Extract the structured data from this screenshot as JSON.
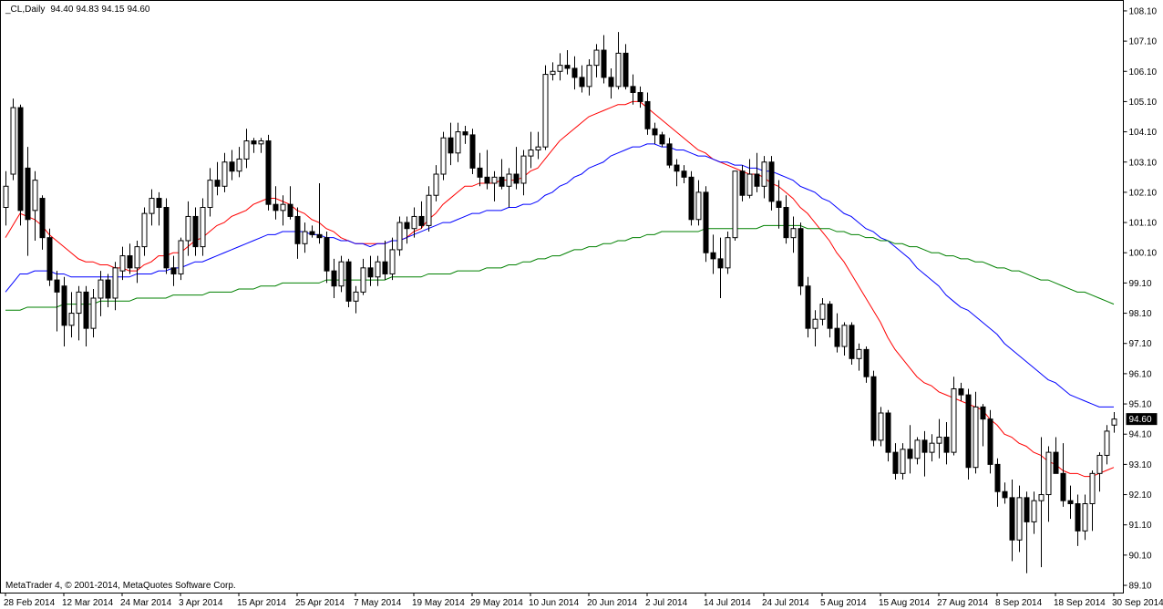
{
  "chart_data": {
    "type": "candlestick",
    "title": "_CL,Daily",
    "header_values": [
      "94.40",
      "94.83",
      "94.15",
      "94.60"
    ],
    "last_price_label": "94.60",
    "footer": "MetaTrader 4, © 2001-2014, MetaQuotes Software Corp.",
    "categories": [
      "28 Feb 2014",
      null,
      null,
      null,
      null,
      null,
      null,
      null,
      "12 Mar 2014",
      null,
      null,
      null,
      null,
      null,
      null,
      null,
      "24 Mar 2014",
      null,
      null,
      null,
      null,
      null,
      null,
      null,
      "3 Apr 2014",
      null,
      null,
      null,
      null,
      null,
      null,
      null,
      "15 Apr 2014",
      null,
      null,
      null,
      null,
      null,
      null,
      null,
      "25 Apr 2014",
      null,
      null,
      null,
      null,
      null,
      null,
      null,
      "7 May 2014",
      null,
      null,
      null,
      null,
      null,
      null,
      null,
      "19 May 2014",
      null,
      null,
      null,
      null,
      null,
      null,
      null,
      "29 May 2014",
      null,
      null,
      null,
      null,
      null,
      null,
      null,
      "10 Jun 2014",
      null,
      null,
      null,
      null,
      null,
      null,
      null,
      "20 Jun 2014",
      null,
      null,
      null,
      null,
      null,
      null,
      null,
      "2 Jul 2014",
      null,
      null,
      null,
      null,
      null,
      null,
      null,
      "14 Jul 2014",
      null,
      null,
      null,
      null,
      null,
      null,
      null,
      "24 Jul 2014",
      null,
      null,
      null,
      null,
      null,
      null,
      null,
      "5 Aug 2014",
      null,
      null,
      null,
      null,
      null,
      null,
      null,
      "15 Aug 2014",
      null,
      null,
      null,
      null,
      null,
      null,
      null,
      "27 Aug 2014",
      null,
      null,
      null,
      null,
      null,
      null,
      null,
      "8 Sep 2014",
      null,
      null,
      null,
      null,
      null,
      null,
      null,
      "18 Sep 2014",
      null,
      null,
      null,
      null,
      null,
      null,
      null,
      "30 Sep 2014"
    ],
    "open": [
      101.6,
      102.7,
      104.9,
      102.9,
      101.5,
      101.9,
      100.6,
      99.2,
      99.0,
      97.7,
      98.1,
      98.8,
      97.6,
      98.6,
      99.2,
      98.6,
      99.5,
      100.0,
      99.6,
      100.3,
      101.4,
      101.9,
      101.6,
      99.6,
      99.4,
      100.5,
      101.3,
      100.3,
      101.6,
      102.5,
      102.3,
      103.1,
      102.8,
      103.2,
      103.8,
      103.7,
      103.8,
      101.7,
      101.5,
      101.7,
      101.3,
      100.4,
      100.8,
      100.7,
      100.6,
      99.5,
      99.0,
      99.8,
      98.5,
      98.8,
      99.6,
      99.3,
      99.8,
      99.4,
      100.2,
      101.1,
      100.9,
      101.3,
      101.0,
      102.0,
      102.7,
      103.9,
      103.4,
      104.1,
      104.0,
      102.9,
      102.6,
      102.4,
      102.6,
      102.3,
      102.7,
      102.4,
      103.3,
      103.5,
      103.6,
      106.0,
      106.1,
      106.3,
      106.2,
      105.9,
      105.6,
      106.3,
      106.8,
      105.9,
      105.6,
      106.7,
      105.6,
      105.4,
      105.1,
      104.2,
      104.0,
      103.7,
      103.0,
      102.8,
      102.6,
      101.2,
      102.1,
      100.1,
      99.9,
      99.6,
      100.6,
      102.8,
      102.0,
      102.7,
      102.3,
      103.1,
      101.8,
      101.6,
      100.6,
      100.9,
      99.0,
      97.6,
      97.9,
      98.4,
      97.6,
      97.0,
      97.7,
      96.6,
      96.9,
      96.0,
      93.9,
      94.8,
      93.5,
      92.8,
      93.6,
      93.3,
      93.9,
      93.5,
      93.8,
      94.0,
      93.5,
      95.6,
      95.4,
      93.0,
      95.0,
      94.6,
      93.1,
      92.2,
      92.0,
      90.6,
      92.0,
      91.2,
      91.9,
      92.1,
      93.5,
      92.8,
      91.9,
      91.8,
      90.9,
      91.8,
      92.8,
      93.4,
      94.4
    ],
    "high": [
      102.8,
      105.2,
      105.0,
      103.6,
      102.8,
      102.0,
      100.9,
      99.5,
      99.3,
      98.8,
      99.0,
      99.0,
      98.9,
      99.5,
      99.4,
      99.8,
      100.3,
      100.4,
      100.5,
      101.6,
      102.2,
      102.1,
      101.9,
      100.0,
      100.6,
      101.8,
      101.6,
      101.9,
      102.9,
      103.1,
      103.4,
      103.5,
      103.6,
      104.2,
      103.9,
      103.9,
      104.0,
      102.3,
      102.0,
      102.3,
      101.6,
      101.1,
      101.0,
      102.4,
      100.8,
      99.9,
      100.0,
      99.9,
      99.0,
      99.9,
      100.0,
      100.0,
      100.5,
      100.6,
      101.3,
      101.3,
      101.6,
      101.8,
      102.3,
      103.0,
      104.1,
      104.4,
      104.4,
      104.3,
      104.2,
      103.4,
      103.5,
      102.8,
      103.2,
      102.9,
      103.6,
      103.5,
      104.1,
      104.1,
      106.3,
      106.4,
      106.7,
      106.8,
      106.6,
      106.3,
      106.5,
      107.0,
      107.3,
      106.2,
      107.4,
      107.0,
      106.0,
      105.6,
      105.4,
      104.4,
      104.1,
      103.9,
      103.2,
      103.0,
      102.8,
      102.5,
      102.3,
      100.7,
      100.6,
      100.8,
      102.8,
      103.0,
      103.2,
      103.4,
      103.3,
      103.3,
      102.5,
      102.0,
      101.3,
      101.1,
      99.3,
      98.2,
      98.6,
      98.5,
      98.1,
      97.8,
      97.8,
      97.1,
      97.0,
      96.2,
      95.0,
      94.9,
      93.8,
      93.8,
      94.4,
      94.0,
      94.2,
      94.1,
      94.6,
      94.5,
      96.0,
      95.8,
      95.6,
      95.5,
      95.1,
      94.9,
      93.3,
      92.5,
      92.6,
      92.4,
      92.2,
      92.2,
      94.0,
      93.7,
      94.0,
      93.8,
      92.4,
      92.1,
      92.1,
      92.9,
      93.5,
      94.4,
      94.83
    ],
    "low": [
      101.0,
      102.5,
      101.0,
      100.0,
      100.5,
      100.2,
      99.0,
      97.5,
      97.0,
      97.3,
      97.2,
      97.0,
      97.3,
      98.0,
      98.3,
      98.2,
      99.2,
      99.4,
      99.1,
      100.0,
      101.0,
      101.0,
      99.4,
      99.0,
      99.2,
      100.0,
      100.0,
      100.0,
      101.3,
      102.0,
      102.1,
      102.5,
      102.6,
      102.9,
      103.4,
      103.4,
      101.5,
      101.2,
      101.0,
      101.2,
      99.9,
      100.1,
      100.6,
      100.4,
      99.1,
      98.6,
      98.8,
      98.3,
      98.1,
      98.7,
      99.0,
      99.0,
      99.2,
      99.2,
      100.0,
      100.4,
      100.6,
      100.9,
      100.8,
      101.8,
      102.5,
      103.0,
      103.1,
      103.7,
      102.7,
      102.3,
      102.2,
      101.8,
      102.2,
      101.6,
      102.2,
      102.0,
      102.9,
      103.2,
      103.5,
      105.8,
      105.8,
      106.0,
      105.5,
      105.4,
      105.3,
      105.9,
      105.7,
      105.2,
      105.5,
      105.5,
      105.0,
      104.9,
      104.0,
      103.7,
      103.6,
      102.9,
      102.3,
      102.4,
      101.0,
      101.0,
      99.8,
      99.4,
      98.6,
      99.4,
      100.5,
      101.8,
      101.9,
      102.1,
      101.9,
      101.5,
      100.9,
      100.4,
      100.1,
      98.7,
      97.3,
      97.0,
      97.7,
      97.3,
      96.8,
      96.7,
      96.4,
      96.2,
      95.8,
      93.7,
      93.7,
      93.2,
      92.6,
      92.6,
      92.8,
      93.1,
      92.7,
      93.2,
      93.3,
      93.1,
      93.4,
      95.2,
      92.6,
      92.8,
      93.7,
      92.8,
      91.7,
      91.8,
      89.9,
      90.2,
      89.5,
      90.8,
      89.7,
      91.2,
      92.8,
      91.7,
      91.3,
      90.4,
      90.6,
      90.9,
      92.2,
      93.1,
      94.15
    ],
    "close": [
      102.3,
      104.9,
      101.5,
      101.2,
      102.5,
      100.6,
      99.2,
      98.8,
      97.7,
      98.1,
      98.8,
      97.6,
      98.6,
      99.2,
      98.6,
      99.6,
      100.0,
      99.6,
      100.3,
      101.4,
      101.9,
      101.6,
      99.6,
      99.4,
      100.5,
      101.3,
      100.3,
      101.6,
      102.5,
      102.3,
      103.1,
      102.8,
      103.2,
      103.8,
      103.7,
      103.8,
      101.7,
      101.5,
      101.7,
      101.3,
      100.4,
      100.8,
      100.7,
      100.6,
      99.5,
      99.0,
      99.8,
      98.5,
      98.8,
      99.6,
      99.3,
      99.8,
      99.4,
      100.2,
      101.1,
      100.9,
      101.3,
      101.0,
      102.0,
      102.7,
      103.9,
      103.4,
      104.1,
      104.0,
      102.9,
      102.6,
      102.4,
      102.6,
      102.3,
      102.7,
      102.4,
      103.3,
      103.5,
      103.6,
      106.0,
      106.1,
      106.3,
      106.2,
      105.9,
      105.6,
      106.3,
      106.8,
      105.9,
      105.6,
      106.7,
      105.6,
      105.4,
      105.1,
      104.2,
      104.0,
      103.7,
      103.0,
      102.8,
      102.6,
      101.2,
      102.1,
      100.1,
      99.9,
      99.6,
      100.6,
      102.8,
      102.0,
      102.7,
      102.3,
      103.1,
      101.8,
      101.6,
      100.6,
      100.9,
      99.0,
      97.6,
      97.9,
      98.4,
      97.6,
      97.0,
      97.7,
      96.6,
      96.9,
      96.0,
      93.9,
      94.8,
      93.5,
      92.8,
      93.6,
      93.3,
      93.9,
      93.5,
      93.8,
      94.0,
      93.5,
      95.6,
      95.4,
      93.0,
      95.0,
      94.6,
      93.1,
      92.2,
      92.0,
      90.6,
      92.0,
      91.2,
      91.9,
      92.1,
      93.5,
      92.8,
      91.9,
      91.8,
      90.9,
      91.8,
      92.8,
      93.4,
      94.2,
      94.6
    ],
    "series": [
      {
        "color": "#ff0000",
        "values": [
          100.6,
          101.0,
          101.4,
          101.3,
          101.2,
          101.0,
          100.7,
          100.5,
          100.3,
          100.1,
          99.9,
          99.8,
          99.8,
          99.7,
          99.7,
          99.6,
          99.6,
          99.5,
          99.5,
          99.7,
          99.8,
          100.0,
          100.0,
          100.1,
          100.1,
          100.3,
          100.5,
          100.6,
          100.8,
          101.0,
          101.1,
          101.3,
          101.4,
          101.5,
          101.7,
          101.8,
          101.9,
          101.9,
          101.8,
          101.7,
          101.5,
          101.4,
          101.2,
          101.1,
          100.9,
          100.8,
          100.6,
          100.5,
          100.4,
          100.4,
          100.4,
          100.4,
          100.4,
          100.5,
          100.5,
          100.6,
          100.8,
          100.9,
          101.2,
          101.4,
          101.7,
          101.9,
          102.1,
          102.3,
          102.3,
          102.4,
          102.4,
          102.4,
          102.5,
          102.5,
          102.5,
          102.6,
          102.8,
          102.9,
          103.2,
          103.5,
          103.8,
          104.0,
          104.2,
          104.4,
          104.6,
          104.7,
          104.8,
          104.9,
          105.0,
          105.0,
          105.1,
          105.1,
          104.9,
          104.7,
          104.5,
          104.3,
          104.1,
          103.9,
          103.7,
          103.5,
          103.4,
          103.2,
          103.1,
          103.0,
          102.9,
          102.8,
          102.7,
          102.7,
          102.6,
          102.4,
          102.3,
          102.1,
          101.9,
          101.6,
          101.4,
          101.1,
          100.8,
          100.5,
          100.1,
          99.8,
          99.4,
          99.0,
          98.6,
          98.2,
          97.8,
          97.3,
          96.9,
          96.6,
          96.3,
          96.0,
          95.8,
          95.7,
          95.5,
          95.4,
          95.3,
          95.2,
          95.1,
          95.0,
          94.9,
          94.6,
          94.4,
          94.1,
          94.0,
          93.8,
          93.7,
          93.5,
          93.4,
          93.2,
          93.1,
          92.9,
          92.8,
          92.8,
          92.7,
          92.7,
          92.8,
          92.9,
          93.0
        ]
      },
      {
        "color": "#0000ff",
        "values": [
          98.8,
          99.1,
          99.4,
          99.4,
          99.5,
          99.5,
          99.5,
          99.4,
          99.4,
          99.3,
          99.3,
          99.3,
          99.3,
          99.3,
          99.3,
          99.3,
          99.3,
          99.3,
          99.4,
          99.4,
          99.4,
          99.5,
          99.5,
          99.6,
          99.6,
          99.7,
          99.8,
          99.8,
          99.9,
          100.0,
          100.1,
          100.2,
          100.3,
          100.4,
          100.5,
          100.6,
          100.7,
          100.7,
          100.8,
          100.8,
          100.8,
          100.8,
          100.7,
          100.7,
          100.6,
          100.6,
          100.5,
          100.5,
          100.4,
          100.4,
          100.3,
          100.4,
          100.4,
          100.5,
          100.5,
          100.6,
          100.7,
          100.8,
          100.9,
          101.0,
          101.1,
          101.1,
          101.2,
          101.3,
          101.4,
          101.4,
          101.5,
          101.5,
          101.5,
          101.6,
          101.6,
          101.7,
          101.7,
          101.8,
          102.0,
          102.1,
          102.3,
          102.4,
          102.6,
          102.7,
          102.9,
          103.0,
          103.1,
          103.3,
          103.4,
          103.5,
          103.6,
          103.6,
          103.7,
          103.7,
          103.6,
          103.6,
          103.5,
          103.5,
          103.4,
          103.3,
          103.3,
          103.2,
          103.1,
          103.1,
          103.0,
          103.0,
          102.9,
          102.9,
          102.8,
          102.8,
          102.7,
          102.6,
          102.5,
          102.3,
          102.2,
          102.1,
          101.9,
          101.8,
          101.6,
          101.4,
          101.3,
          101.1,
          100.9,
          100.8,
          100.6,
          100.5,
          100.3,
          100.1,
          99.9,
          99.6,
          99.4,
          99.2,
          99.0,
          98.7,
          98.5,
          98.3,
          98.2,
          98.0,
          97.8,
          97.6,
          97.4,
          97.1,
          96.9,
          96.7,
          96.5,
          96.3,
          96.1,
          95.9,
          95.8,
          95.6,
          95.4,
          95.3,
          95.2,
          95.1,
          95.0,
          95.0,
          95.0
        ]
      },
      {
        "color": "#008000",
        "values": [
          98.2,
          98.2,
          98.2,
          98.3,
          98.3,
          98.3,
          98.3,
          98.3,
          98.4,
          98.4,
          98.4,
          98.4,
          98.4,
          98.5,
          98.5,
          98.5,
          98.5,
          98.5,
          98.6,
          98.6,
          98.6,
          98.6,
          98.6,
          98.7,
          98.7,
          98.7,
          98.7,
          98.7,
          98.8,
          98.8,
          98.8,
          98.8,
          98.9,
          98.9,
          98.9,
          99.0,
          99.0,
          99.0,
          99.1,
          99.1,
          99.1,
          99.1,
          99.1,
          99.1,
          99.2,
          99.2,
          99.2,
          99.2,
          99.2,
          99.2,
          99.2,
          99.2,
          99.2,
          99.3,
          99.3,
          99.3,
          99.3,
          99.3,
          99.4,
          99.4,
          99.4,
          99.4,
          99.5,
          99.5,
          99.5,
          99.5,
          99.6,
          99.6,
          99.6,
          99.7,
          99.7,
          99.8,
          99.8,
          99.9,
          99.9,
          100.0,
          100.0,
          100.1,
          100.2,
          100.2,
          100.3,
          100.3,
          100.4,
          100.4,
          100.5,
          100.5,
          100.6,
          100.6,
          100.7,
          100.7,
          100.8,
          100.8,
          100.8,
          100.8,
          100.8,
          100.8,
          100.9,
          100.9,
          100.9,
          100.9,
          100.9,
          100.9,
          100.9,
          100.9,
          101.0,
          101.0,
          101.0,
          101.0,
          101.0,
          101.0,
          100.9,
          100.9,
          100.9,
          100.9,
          100.8,
          100.8,
          100.7,
          100.7,
          100.6,
          100.6,
          100.5,
          100.5,
          100.4,
          100.4,
          100.3,
          100.3,
          100.2,
          100.1,
          100.1,
          100.0,
          100.0,
          99.9,
          99.9,
          99.8,
          99.8,
          99.7,
          99.6,
          99.6,
          99.5,
          99.5,
          99.4,
          99.3,
          99.2,
          99.2,
          99.1,
          99.0,
          98.9,
          98.8,
          98.8,
          98.7,
          98.6,
          98.5,
          98.4
        ]
      }
    ],
    "ylim": [
      88.86,
      108.43
    ],
    "yticks": [
      {
        "value": 89.1,
        "label": "89.10"
      },
      {
        "value": 90.1,
        "label": "90.10"
      },
      {
        "value": 91.1,
        "label": "91.10"
      },
      {
        "value": 92.1,
        "label": "92.10"
      },
      {
        "value": 93.1,
        "label": "93.10"
      },
      {
        "value": 94.1,
        "label": "94.10"
      },
      {
        "value": 95.1,
        "label": "95.10"
      },
      {
        "value": 96.1,
        "label": "96.10"
      },
      {
        "value": 97.1,
        "label": "97.10"
      },
      {
        "value": 98.1,
        "label": "98.10"
      },
      {
        "value": 99.1,
        "label": "99.10"
      },
      {
        "value": 100.1,
        "label": "100.10"
      },
      {
        "value": 101.1,
        "label": "101.10"
      },
      {
        "value": 102.1,
        "label": "102.10"
      },
      {
        "value": 103.1,
        "label": "103.10"
      },
      {
        "value": 104.1,
        "label": "104.10"
      },
      {
        "value": 105.1,
        "label": "105.10"
      },
      {
        "value": 106.1,
        "label": "106.10"
      },
      {
        "value": 107.1,
        "label": "107.10"
      },
      {
        "value": 108.1,
        "label": "108.10"
      }
    ],
    "up_color": "#ffffff",
    "down_color": "#000000",
    "grid": false
  }
}
